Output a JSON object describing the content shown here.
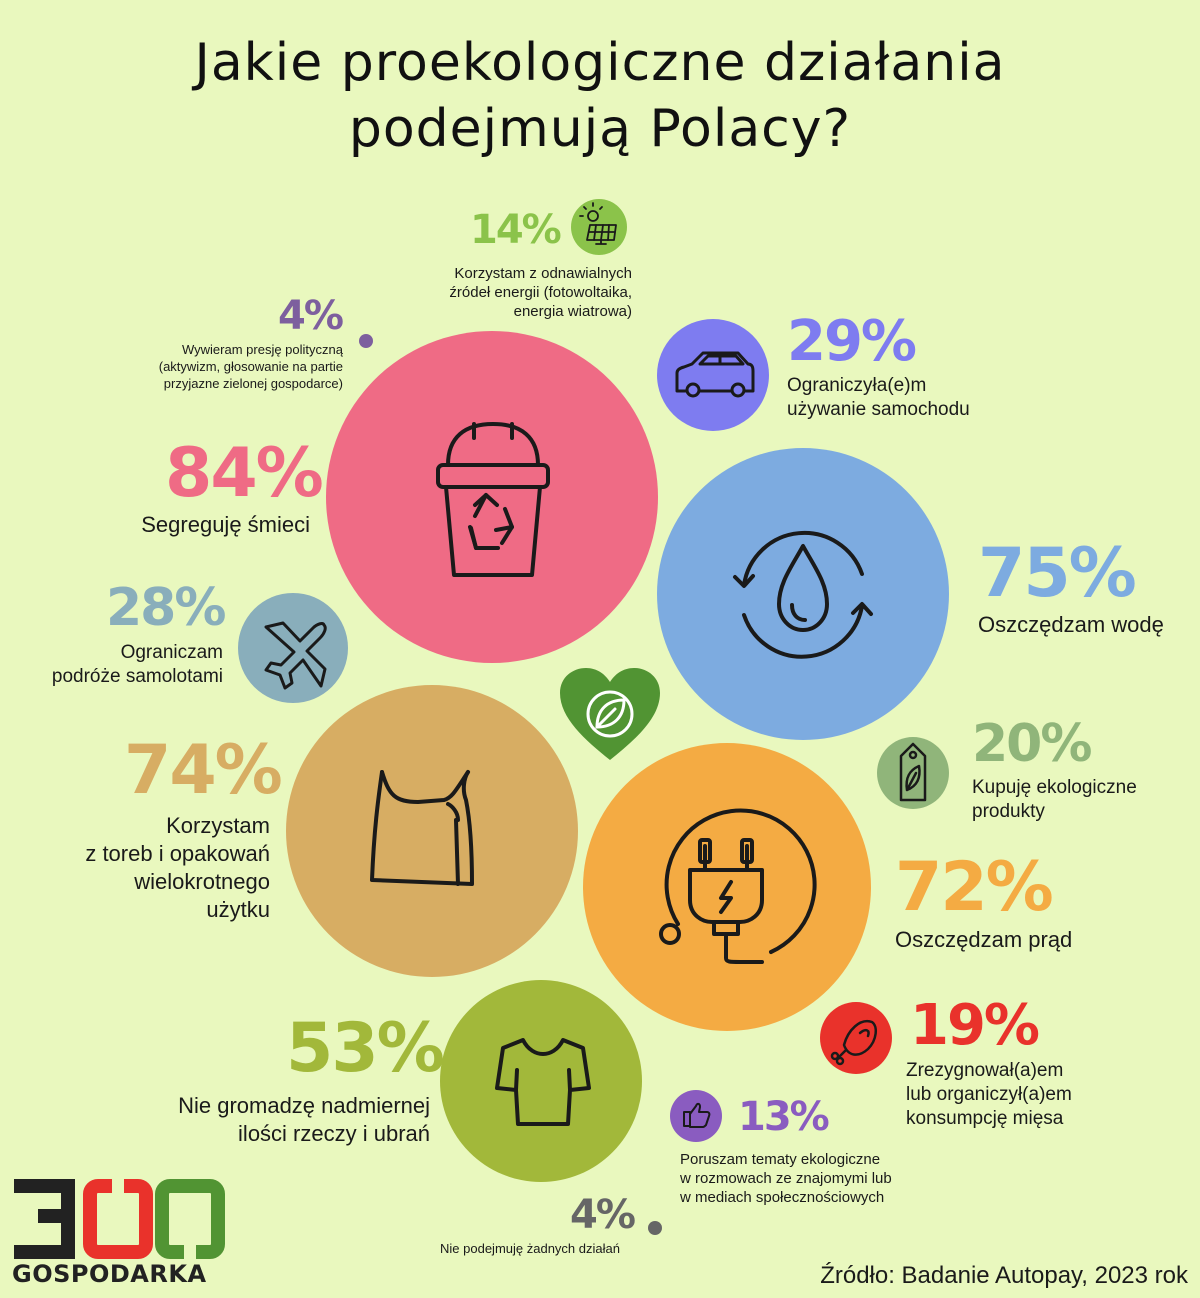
{
  "title": {
    "line1": "Jakie proekologiczne działania",
    "line2": "podejmują Polacy?"
  },
  "colors": {
    "background": "#e9f8be",
    "pink": "#ef6b85",
    "blue": "#7dabe0",
    "tan": "#d7ad63",
    "orange": "#f4ab43",
    "olive": "#a2b83a",
    "green_heart": "#519433",
    "purple": "#7e7cf0",
    "steel": "#89aebb",
    "sage": "#90b57a",
    "red": "#e9322b",
    "violet": "#8a5cc0",
    "lime": "#8bc34a",
    "grey": "#666666"
  },
  "chart_data": {
    "type": "bubble",
    "title": "Jakie proekologiczne działania podejmują Polacy?",
    "unit": "%",
    "series": [
      {
        "label": "Segreguję śmieci",
        "value": 84,
        "color": "#ef6b85",
        "icon": "recycle-bin-icon"
      },
      {
        "label": "Oszczędzam wodę",
        "value": 75,
        "color": "#7dabe0",
        "icon": "water-drop-icon"
      },
      {
        "label": "Korzystam z toreb i opakowań wielokrotnego użytku",
        "value": 74,
        "color": "#d7ad63",
        "icon": "shopping-bag-icon"
      },
      {
        "label": "Oszczędzam prąd",
        "value": 72,
        "color": "#f4ab43",
        "icon": "plug-icon"
      },
      {
        "label": "Nie gromadzę nadmiernej ilości rzeczy i ubrań",
        "value": 53,
        "color": "#a2b83a",
        "icon": "tshirt-icon"
      },
      {
        "label": "Ograniczyła(e)m używanie samochodu",
        "value": 29,
        "color": "#7e7cf0",
        "icon": "car-icon"
      },
      {
        "label": "Ograniczam podróże samolotami",
        "value": 28,
        "color": "#89aebb",
        "icon": "airplane-icon"
      },
      {
        "label": "Kupuję ekologiczne produkty",
        "value": 20,
        "color": "#90b57a",
        "icon": "eco-tag-icon"
      },
      {
        "label": "Zrezygnował(a)em lub organiczył(a)em konsumpcję mięsa",
        "value": 19,
        "color": "#e9322b",
        "icon": "meat-icon"
      },
      {
        "label": "Korzystam z odnawialnych źródeł energii (fotowoltaika, energia wiatrowa)",
        "value": 14,
        "color": "#8bc34a",
        "icon": "solar-panel-icon"
      },
      {
        "label": "Poruszam tematy ekologiczne w rozmowach ze znajomymi lub w mediach społecznościowych",
        "value": 13,
        "color": "#8a5cc0",
        "icon": "thumbs-up-icon"
      },
      {
        "label": "Wywieram presję polityczną (aktywizm, głosowanie na partie przyjazne zielonej gospodarce)",
        "value": 4,
        "color": "#7d5f9e",
        "icon": "dot"
      },
      {
        "label": "Nie podejmuję żadnych działań",
        "value": 4,
        "color": "#666666",
        "icon": "dot"
      }
    ]
  },
  "items": {
    "segregation": {
      "pct": "84%",
      "label": "Segreguję śmieci"
    },
    "water": {
      "pct": "75%",
      "label": "Oszczędzam wodę"
    },
    "bags": {
      "pct": "74%",
      "line1": "Korzystam",
      "line2": "z toreb i opakowań",
      "line3": "wielokrotnego",
      "line4": "użytku"
    },
    "power": {
      "pct": "72%",
      "label": "Oszczędzam prąd"
    },
    "clothes": {
      "pct": "53%",
      "line1": "Nie gromadzę nadmiernej",
      "line2": "ilości rzeczy i ubrań"
    },
    "car": {
      "pct": "29%",
      "line1": "Ograniczyła(e)m",
      "line2": "używanie samochodu"
    },
    "plane": {
      "pct": "28%",
      "line1": "Ograniczam",
      "line2": "podróże samolotami"
    },
    "eco_products": {
      "pct": "20%",
      "line1": "Kupuję ekologiczne",
      "line2": "produkty"
    },
    "meat": {
      "pct": "19%",
      "line1": "Zrezygnował(a)em",
      "line2": "lub organiczył(a)em",
      "line3": "konsumpcję mięsa"
    },
    "renewable": {
      "pct": "14%",
      "line1": "Korzystam z odnawialnych",
      "line2": "źródeł energii (fotowoltaika,",
      "line3": "energia wiatrowa)"
    },
    "talk": {
      "pct": "13%",
      "line1": "Poruszam tematy ekologiczne",
      "line2": "w rozmowach ze znajomymi lub",
      "line3": "w mediach społecznościowych"
    },
    "politics": {
      "pct": "4%",
      "line1": "Wywieram presję polityczną",
      "line2": "(aktywizm, głosowanie na partie",
      "line3": "przyjazne zielonej gospodarce)"
    },
    "nothing": {
      "pct": "4%",
      "label": "Nie podejmuję żadnych działań"
    }
  },
  "logo": {
    "digits": "300",
    "word": "GOSPODARKA"
  },
  "source": "Źródło: Badanie Autopay, 2023 rok"
}
